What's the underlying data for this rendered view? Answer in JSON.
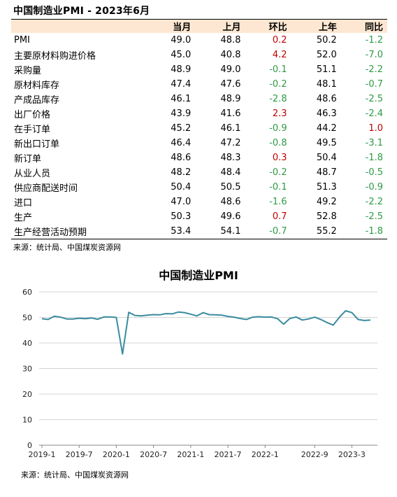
{
  "table": {
    "title": "中国制造业PMI - 2023年6月",
    "headers": {
      "name": "",
      "current": "当月",
      "prev_month": "上月",
      "mom": "环比",
      "prev_year": "上年",
      "yoy": "同比"
    },
    "rows": [
      {
        "name": "PMI",
        "current": "49.0",
        "prev_month": "48.8",
        "mom": "0.2",
        "prev_year": "50.2",
        "yoy": "-1.2"
      },
      {
        "name": "主要原材料购进价格",
        "current": "45.0",
        "prev_month": "40.8",
        "mom": "4.2",
        "prev_year": "52.0",
        "yoy": "-7.0"
      },
      {
        "name": "采购量",
        "current": "48.9",
        "prev_month": "49.0",
        "mom": "-0.1",
        "prev_year": "51.1",
        "yoy": "-2.2"
      },
      {
        "name": "原材料库存",
        "current": "47.4",
        "prev_month": "47.6",
        "mom": "-0.2",
        "prev_year": "48.1",
        "yoy": "-0.7"
      },
      {
        "name": "产成品库存",
        "current": "46.1",
        "prev_month": "48.9",
        "mom": "-2.8",
        "prev_year": "48.6",
        "yoy": "-2.5"
      },
      {
        "name": "出厂价格",
        "current": "43.9",
        "prev_month": "41.6",
        "mom": "2.3",
        "prev_year": "46.3",
        "yoy": "-2.4"
      },
      {
        "name": "在手订单",
        "current": "45.2",
        "prev_month": "46.1",
        "mom": "-0.9",
        "prev_year": "44.2",
        "yoy": "1.0"
      },
      {
        "name": "新出口订单",
        "current": "46.4",
        "prev_month": "47.2",
        "mom": "-0.8",
        "prev_year": "49.5",
        "yoy": "-3.1"
      },
      {
        "name": "新订单",
        "current": "48.6",
        "prev_month": "48.3",
        "mom": "0.3",
        "prev_year": "50.4",
        "yoy": "-1.8"
      },
      {
        "name": "从业人员",
        "current": "48.2",
        "prev_month": "48.4",
        "mom": "-0.2",
        "prev_year": "48.7",
        "yoy": "-0.5"
      },
      {
        "name": "供应商配送时间",
        "current": "50.4",
        "prev_month": "50.5",
        "mom": "-0.1",
        "prev_year": "51.3",
        "yoy": "-0.9"
      },
      {
        "name": "进口",
        "current": "47.0",
        "prev_month": "48.6",
        "mom": "-1.6",
        "prev_year": "49.2",
        "yoy": "-2.2"
      },
      {
        "name": "生产",
        "current": "50.3",
        "prev_month": "49.6",
        "mom": "0.7",
        "prev_year": "52.8",
        "yoy": "-2.5"
      },
      {
        "name": "生产经营活动预期",
        "current": "53.4",
        "prev_month": "54.1",
        "mom": "-0.7",
        "prev_year": "55.2",
        "yoy": "-1.8"
      }
    ],
    "source": "来源：统计局、中国煤炭资源网"
  },
  "colors": {
    "positive": "#c00000",
    "negative": "#2e9a45",
    "header_bg": "#fde7d2",
    "line": "#3a8ca0"
  },
  "chart_data": {
    "type": "line",
    "title": "中国制造业PMI",
    "xlabel": "",
    "ylabel": "",
    "ylim": [
      0,
      60
    ],
    "yticks": [
      0,
      10,
      20,
      30,
      40,
      50,
      60
    ],
    "grid": true,
    "x": [
      "2019-1",
      "2019-2",
      "2019-3",
      "2019-4",
      "2019-5",
      "2019-6",
      "2019-7",
      "2019-8",
      "2019-9",
      "2019-10",
      "2019-11",
      "2019-12",
      "2020-1",
      "2020-2",
      "2020-3",
      "2020-4",
      "2020-5",
      "2020-6",
      "2020-7",
      "2020-8",
      "2020-9",
      "2020-10",
      "2020-11",
      "2020-12",
      "2021-1",
      "2021-2",
      "2021-3",
      "2021-4",
      "2021-5",
      "2021-6",
      "2021-7",
      "2021-8",
      "2021-9",
      "2021-10",
      "2021-11",
      "2021-12",
      "2022-1",
      "2022-2",
      "2022-3",
      "2022-4",
      "2022-5",
      "2022-6",
      "2022-7",
      "2022-8",
      "2022-9",
      "2022-10",
      "2022-11",
      "2022-12",
      "2023-1",
      "2023-2",
      "2023-3",
      "2023-4",
      "2023-5",
      "2023-6"
    ],
    "xtick_labels": [
      "2019-1",
      "2019-7",
      "2020-1",
      "2020-7",
      "2021-1",
      "2021-7",
      "2022-1",
      "2022-9",
      "2023-3"
    ],
    "series": [
      {
        "values": [
          49.5,
          49.2,
          50.5,
          50.1,
          49.4,
          49.4,
          49.7,
          49.5,
          49.8,
          49.3,
          50.2,
          50.2,
          50.0,
          35.7,
          52.0,
          50.8,
          50.6,
          50.9,
          51.1,
          51.0,
          51.5,
          51.4,
          52.1,
          51.9,
          51.3,
          50.6,
          51.9,
          51.1,
          51.0,
          50.9,
          50.4,
          50.1,
          49.6,
          49.2,
          50.1,
          50.3,
          50.1,
          50.2,
          49.5,
          47.4,
          49.6,
          50.2,
          49.0,
          49.4,
          50.1,
          49.2,
          48.0,
          47.0,
          50.1,
          52.6,
          51.9,
          49.2,
          48.8,
          49.0
        ]
      }
    ],
    "source": "来源：统计局、中国煤炭资源网"
  }
}
